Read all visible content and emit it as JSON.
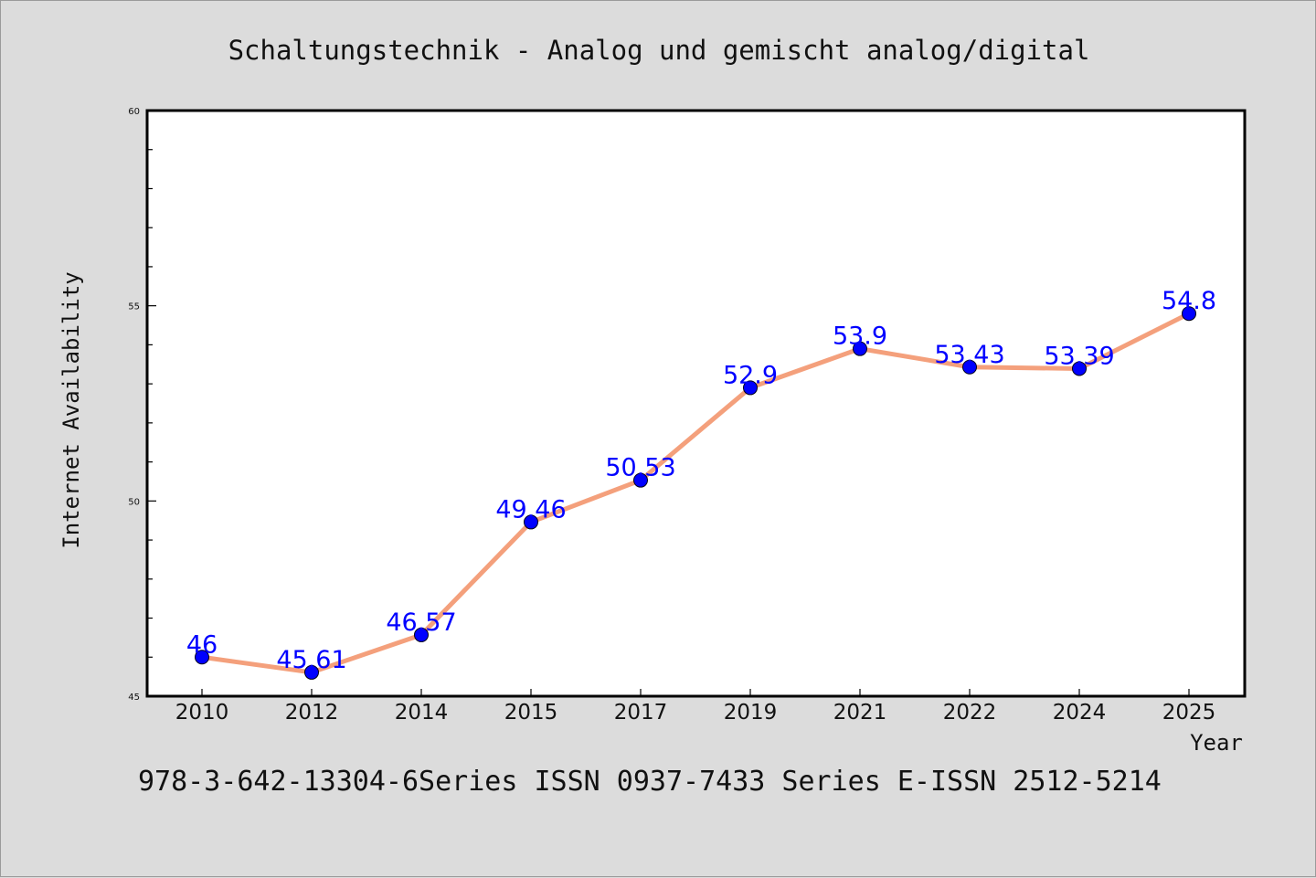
{
  "chart_data": {
    "type": "line",
    "title": "Schaltungstechnik - Analog und gemischt analog/digital",
    "xlabel": "Year",
    "ylabel": "Internet Availability",
    "categories": [
      "2010",
      "2012",
      "2014",
      "2015",
      "2017",
      "2019",
      "2021",
      "2022",
      "2024",
      "2025"
    ],
    "series": [
      {
        "values": [
          46,
          45.61,
          46.57,
          49.46,
          50.53,
          52.9,
          53.9,
          53.43,
          53.39,
          54.8
        ],
        "labels": [
          "46",
          "45.61",
          "46.57",
          "49.46",
          "50.53",
          "52.9",
          "53.9",
          "53.43",
          "53.39",
          "54.8"
        ],
        "line_color": "#f4a07c",
        "marker_color": "#0000ff",
        "label_color": "#0000ff"
      }
    ],
    "ylim": [
      45,
      60
    ],
    "yticks": [
      "45",
      "50",
      "55",
      "60"
    ],
    "grid": false,
    "legend": "none",
    "footer": "978-3-642-13304-6Series ISSN 0937-7433 Series E-ISSN 2512-5214"
  }
}
